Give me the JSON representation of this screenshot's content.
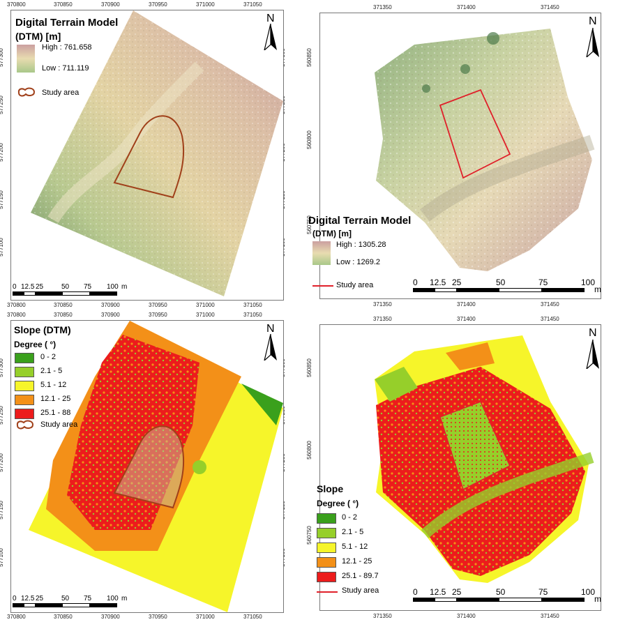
{
  "panels": {
    "top_left": {
      "title_line1": "Digital Terrain Model",
      "title_line2": "(DTM) [m]",
      "high": "High : 761.658",
      "low": "Low : 711.119",
      "study_area": "Study area",
      "x_ticks": [
        "370800",
        "370850",
        "370900",
        "370950",
        "371000",
        "371050"
      ],
      "y_ticks": [
        "577300",
        "577250",
        "577200",
        "577150",
        "577100"
      ],
      "scale": [
        "0",
        "12.5",
        "25",
        "50",
        "75",
        "100"
      ],
      "scale_unit": "m",
      "north": "N"
    },
    "top_right": {
      "title_line1": "Digital Terrain Model",
      "title_line2": "(DTM) [m]",
      "high": "High : 1305.28",
      "low": "Low : 1269.2",
      "study_area": "Study area",
      "x_ticks": [
        "371350",
        "371400",
        "371450"
      ],
      "y_ticks": [
        "560850",
        "560800",
        "560750"
      ],
      "scale": [
        "0",
        "12.5",
        "25",
        "50",
        "75",
        "100"
      ],
      "scale_unit": "m",
      "north": "N"
    },
    "bottom_left": {
      "title": "Slope (DTM)",
      "subtitle": "Degree ( °)",
      "classes": [
        "0 - 2",
        "2.1 - 5",
        "5.1 - 12",
        "12.1 - 25",
        "25.1 - 88"
      ],
      "study_area": "Study area",
      "x_ticks": [
        "370800",
        "370850",
        "370900",
        "370950",
        "371000",
        "371050"
      ],
      "y_ticks": [
        "577300",
        "577250",
        "577200",
        "577150",
        "577100"
      ],
      "scale": [
        "0",
        "12.5",
        "25",
        "50",
        "75",
        "100"
      ],
      "scale_unit": "m",
      "north": "N"
    },
    "bottom_right": {
      "title": "Slope",
      "subtitle": "Degree ( °)",
      "classes": [
        "0 - 2",
        "2.1 - 5",
        "5.1 - 12",
        "12.1 - 25",
        "25.1 - 89.7"
      ],
      "study_area": "Study area",
      "x_ticks": [
        "371350",
        "371400",
        "371450"
      ],
      "y_ticks": [
        "560850",
        "560800",
        "560750"
      ],
      "scale": [
        "0",
        "12.5",
        "25",
        "50",
        "75",
        "100"
      ],
      "scale_unit": "m",
      "north": "N"
    }
  },
  "colors": {
    "slope": [
      "#3aa01c",
      "#96cf2a",
      "#f6f52a",
      "#f39018",
      "#ec1c1c"
    ],
    "dtm_high": "#cba0a0",
    "dtm_low": "#a9c889",
    "study_area_tl": "#a0401a",
    "study_area_tr": "#e0202a"
  }
}
